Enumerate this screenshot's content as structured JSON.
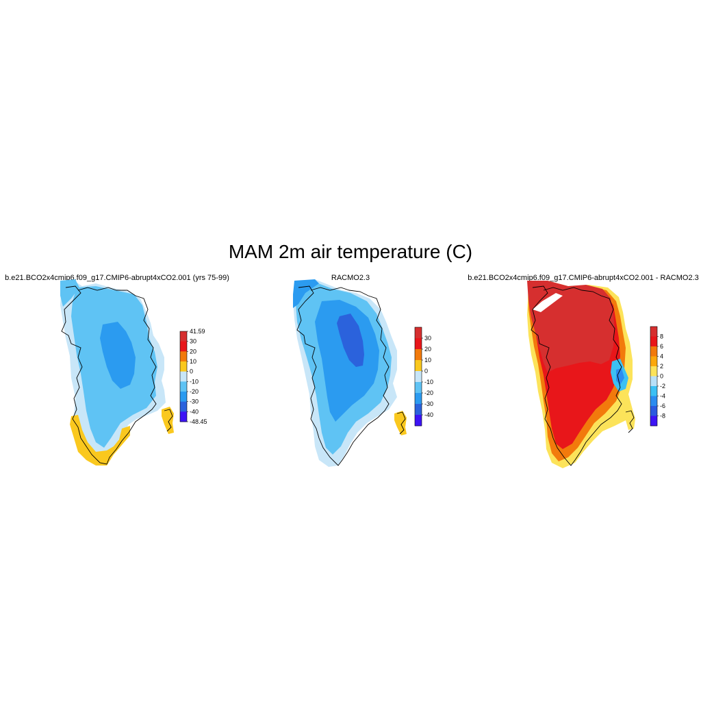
{
  "title": "MAM 2m air temperature (C)",
  "panels": [
    {
      "title": "b.e21.BCO2x4cmip6.f09_g17.CMIP6-abrupt4xCO2.001 (yrs 75-99)",
      "colorbar": {
        "labels": [
          "41.59",
          "30",
          "20",
          "10",
          "0",
          "-10",
          "-20",
          "-30",
          "-40",
          "-48.45"
        ],
        "colors": [
          "#d62f2f",
          "#e8161a",
          "#f27a0c",
          "#fac81e",
          "#c8e6f8",
          "#5fc3f4",
          "#2b9bf0",
          "#2b62dc",
          "#3d14f5"
        ]
      }
    },
    {
      "title": "RACMO2.3",
      "colorbar": {
        "labels": [
          "30",
          "20",
          "10",
          "0",
          "-10",
          "-20",
          "-30",
          "-40"
        ],
        "colors": [
          "#d62f2f",
          "#e8161a",
          "#f27a0c",
          "#fac81e",
          "#c8e6f8",
          "#5fc3f4",
          "#2b9bf0",
          "#2b62dc",
          "#3d14f5"
        ]
      }
    },
    {
      "title": "b.e21.BCO2x4cmip6.f09_g17.CMIP6-abrupt4xCO2.001 - RACMO2.3",
      "colorbar": {
        "labels": [
          "8",
          "6",
          "4",
          "2",
          "0",
          "-2",
          "-4",
          "-6",
          "-8"
        ],
        "colors": [
          "#d62f2f",
          "#e8161a",
          "#f27a0c",
          "#fca80c",
          "#fce35a",
          "#b8e0f8",
          "#3cc0f4",
          "#2b8cf0",
          "#2b5ae0",
          "#3d14f5"
        ]
      }
    }
  ]
}
